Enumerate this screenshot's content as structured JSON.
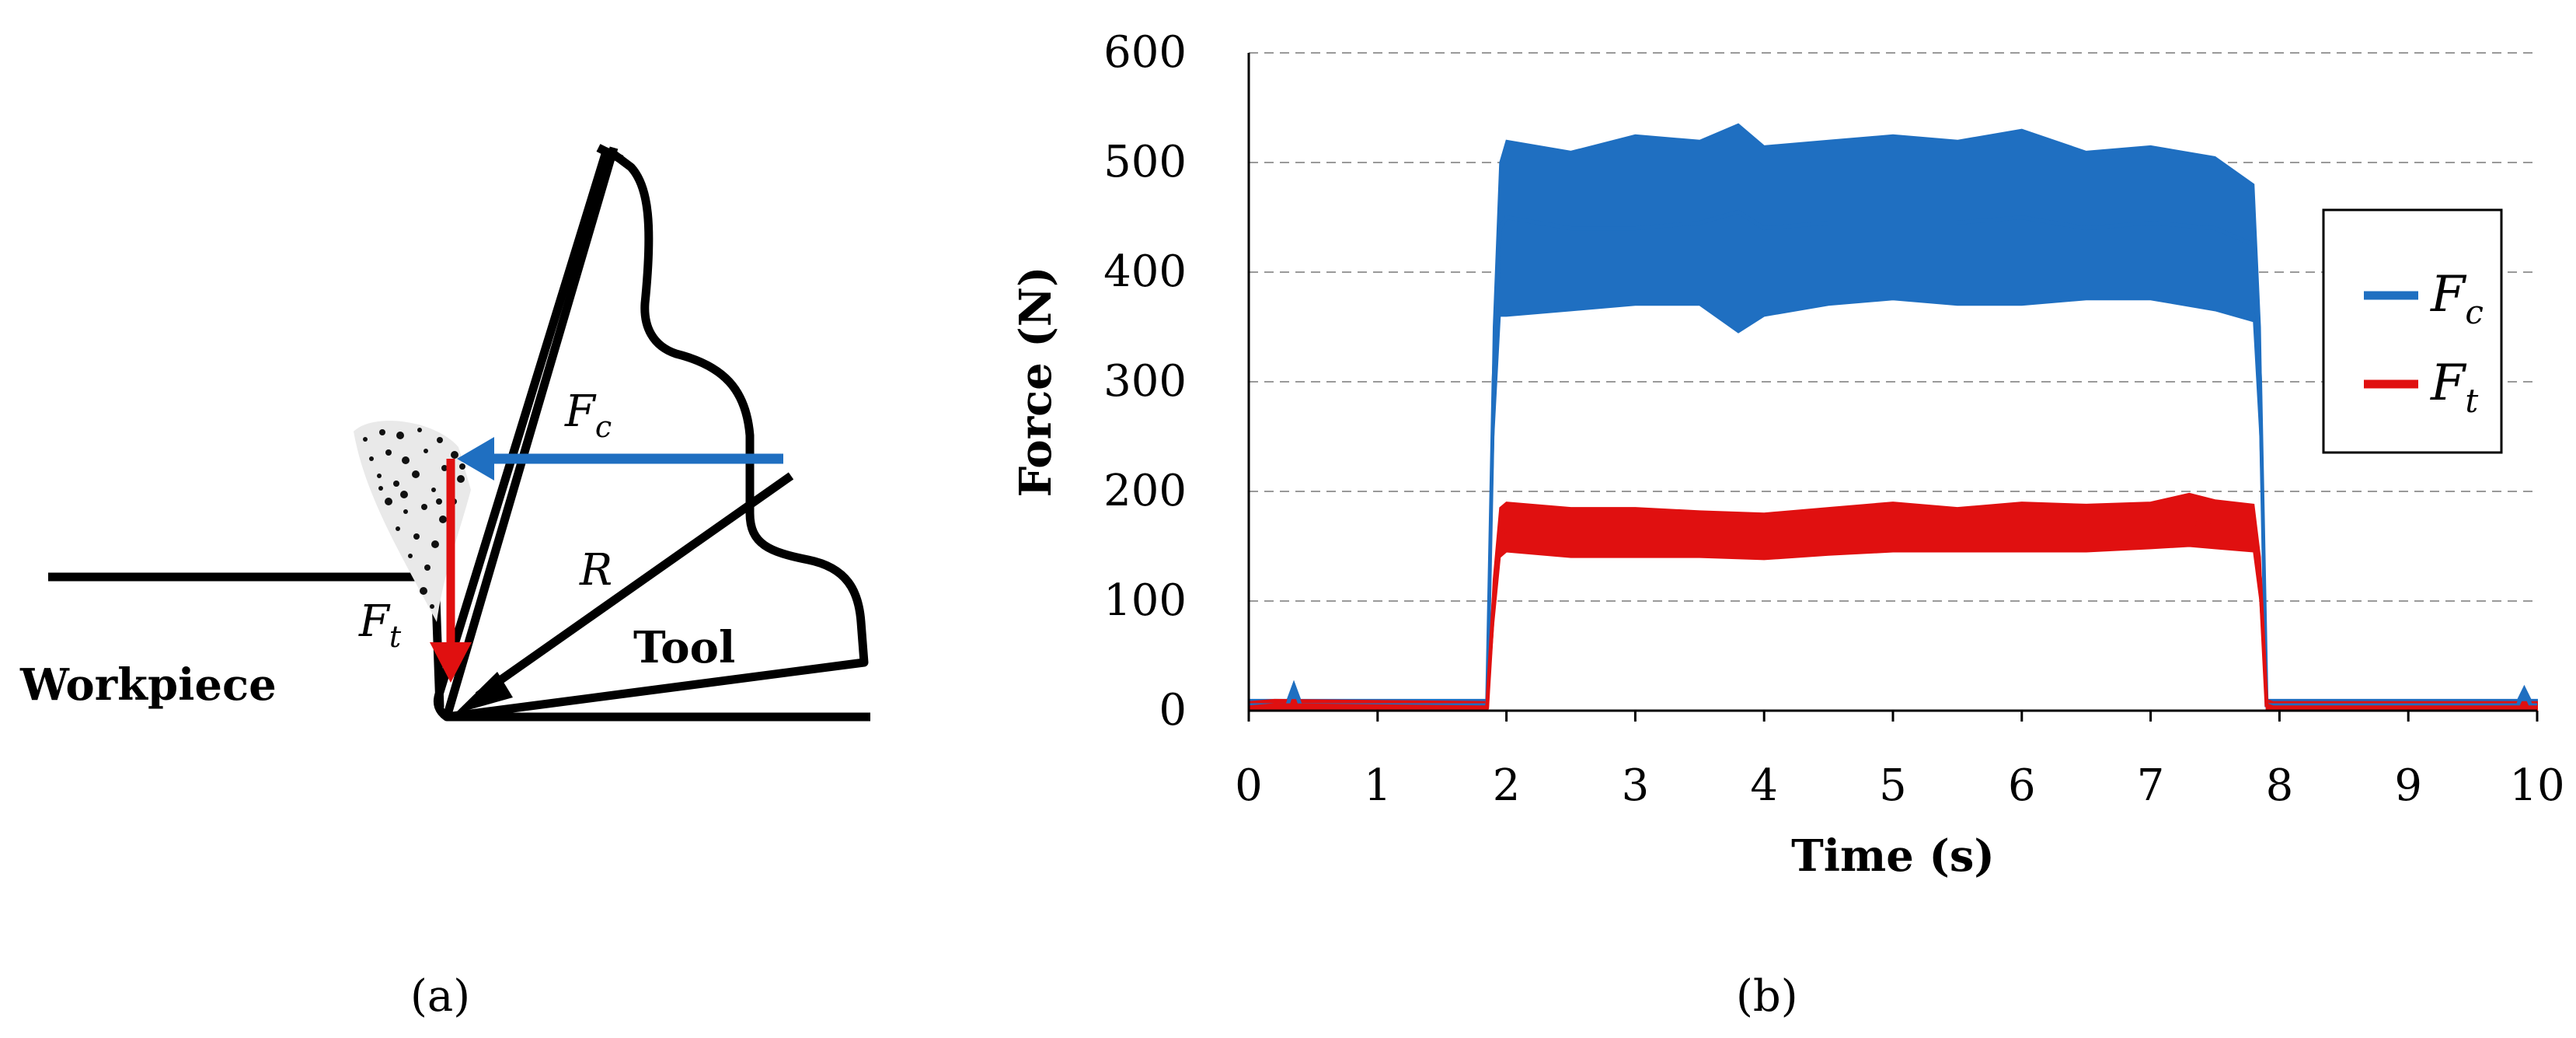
{
  "panel_a": {
    "label": "(a)",
    "workpiece_label": "Workpiece",
    "tool_label": "Tool",
    "force_labels": {
      "cutting": {
        "main": "F",
        "sub": "c"
      },
      "thrust": {
        "main": "F",
        "sub": "t"
      },
      "resultant": "R"
    },
    "colors": {
      "cutting": "#1f6fc1",
      "thrust": "#e01010",
      "resultant": "#000000",
      "outline": "#000000"
    }
  },
  "panel_b": {
    "label": "(b)"
  },
  "chart_data": {
    "type": "line",
    "title": "",
    "xlabel": "Time (s)",
    "ylabel": "Force (N)",
    "xlim": [
      0,
      10
    ],
    "ylim": [
      0,
      600
    ],
    "xticks": [
      0,
      1,
      2,
      3,
      4,
      5,
      6,
      7,
      8,
      9,
      10
    ],
    "yticks": [
      0,
      100,
      200,
      300,
      400,
      500,
      600
    ],
    "grid": "horizontal dashed",
    "legend_position": "right",
    "series": [
      {
        "name": "Fc",
        "legend_main": "F",
        "legend_sub": "c",
        "color": "#1f6fc1",
        "x": [
          0,
          0.3,
          0.35,
          0.4,
          1.85,
          1.9,
          1.95,
          2.0,
          2.5,
          3.0,
          3.5,
          3.8,
          4.0,
          4.5,
          5.0,
          5.5,
          6.0,
          6.5,
          7.0,
          7.5,
          7.8,
          7.85,
          7.9,
          7.95,
          8.0,
          9.85,
          9.9,
          9.95,
          10
        ],
        "y": [
          5,
          5,
          22,
          5,
          5,
          300,
          440,
          450,
          440,
          440,
          445,
          455,
          440,
          445,
          445,
          445,
          450,
          440,
          445,
          440,
          425,
          300,
          5,
          5,
          5,
          5,
          18,
          5,
          5
        ],
        "band_low": [
          0,
          0,
          0,
          0,
          0,
          250,
          360,
          360,
          365,
          370,
          370,
          345,
          360,
          370,
          375,
          370,
          370,
          375,
          375,
          365,
          355,
          250,
          0,
          0,
          0,
          0,
          0,
          0,
          0
        ],
        "band_high": [
          10,
          10,
          26,
          10,
          10,
          350,
          500,
          520,
          510,
          525,
          520,
          535,
          515,
          520,
          525,
          520,
          530,
          510,
          515,
          505,
          480,
          350,
          10,
          10,
          10,
          10,
          22,
          10,
          10
        ]
      },
      {
        "name": "Ft",
        "legend_main": "F",
        "legend_sub": "t",
        "color": "#e01010",
        "x": [
          0,
          0.2,
          1.85,
          1.9,
          1.95,
          2.0,
          2.5,
          3.0,
          3.5,
          4.0,
          4.5,
          5.0,
          5.5,
          6.0,
          6.5,
          7.0,
          7.3,
          7.5,
          7.8,
          7.85,
          7.9,
          7.95,
          8.0,
          9.5,
          10
        ],
        "y": [
          3,
          5,
          3,
          100,
          160,
          165,
          160,
          160,
          162,
          160,
          165,
          165,
          165,
          165,
          165,
          168,
          172,
          168,
          165,
          120,
          5,
          3,
          3,
          3,
          3
        ],
        "band_low": [
          0,
          0,
          0,
          80,
          140,
          145,
          140,
          140,
          140,
          138,
          142,
          145,
          145,
          145,
          145,
          148,
          150,
          148,
          145,
          100,
          0,
          0,
          0,
          0,
          0
        ],
        "band_high": [
          8,
          10,
          8,
          120,
          185,
          190,
          185,
          185,
          182,
          180,
          185,
          190,
          185,
          190,
          188,
          190,
          198,
          192,
          188,
          140,
          10,
          8,
          8,
          8,
          8
        ]
      }
    ]
  }
}
